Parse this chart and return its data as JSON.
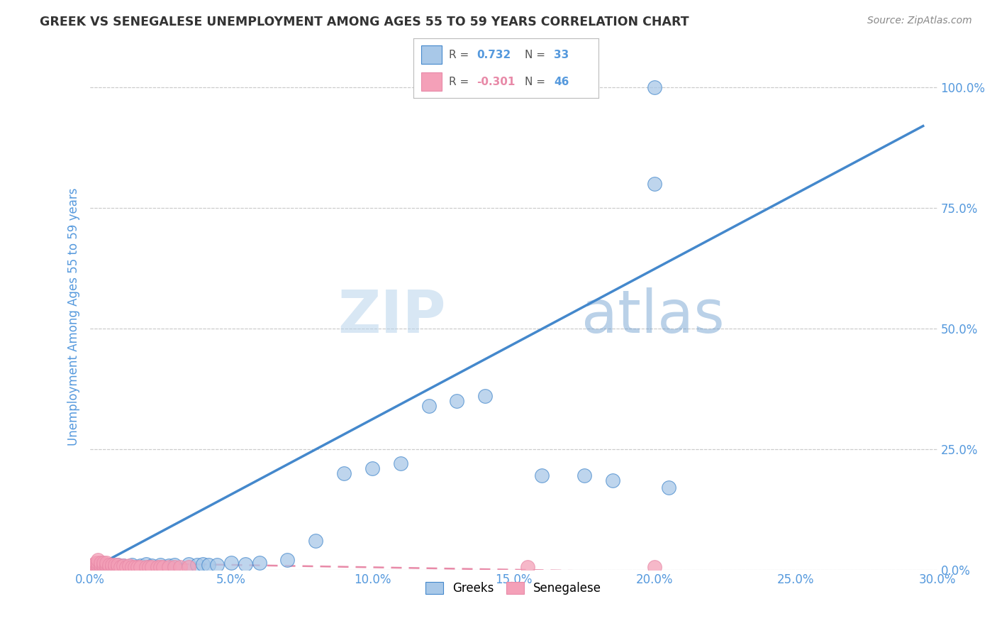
{
  "title": "GREEK VS SENEGALESE UNEMPLOYMENT AMONG AGES 55 TO 59 YEARS CORRELATION CHART",
  "source": "Source: ZipAtlas.com",
  "xlim": [
    0,
    0.3
  ],
  "ylim": [
    0,
    1.05
  ],
  "legend_label_blue": "Greeks",
  "legend_label_pink": "Senegalese",
  "R_blue": "0.732",
  "N_blue": "33",
  "R_pink": "-0.301",
  "N_pink": "46",
  "watermark_zip": "ZIP",
  "watermark_atlas": "atlas",
  "blue_color": "#A8C8E8",
  "pink_color": "#F4A0B8",
  "blue_line_color": "#4488CC",
  "pink_line_color": "#E88AA8",
  "title_color": "#333333",
  "source_color": "#888888",
  "axis_color": "#5599DD",
  "grid_color": "#CCCCCC",
  "blue_scatter_x": [
    0.005,
    0.008,
    0.01,
    0.012,
    0.015,
    0.018,
    0.02,
    0.022,
    0.025,
    0.028,
    0.03,
    0.035,
    0.038,
    0.04,
    0.042,
    0.045,
    0.05,
    0.055,
    0.06,
    0.07,
    0.08,
    0.09,
    0.1,
    0.11,
    0.12,
    0.13,
    0.14,
    0.16,
    0.175,
    0.185,
    0.2,
    0.205,
    0.2
  ],
  "blue_scatter_y": [
    0.01,
    0.008,
    0.01,
    0.008,
    0.01,
    0.008,
    0.012,
    0.008,
    0.01,
    0.008,
    0.01,
    0.012,
    0.01,
    0.012,
    0.01,
    0.01,
    0.015,
    0.012,
    0.015,
    0.02,
    0.06,
    0.2,
    0.21,
    0.22,
    0.34,
    0.35,
    0.36,
    0.195,
    0.195,
    0.185,
    0.8,
    0.17,
    1.0
  ],
  "pink_scatter_x": [
    0.001,
    0.001,
    0.002,
    0.002,
    0.002,
    0.003,
    0.003,
    0.003,
    0.003,
    0.004,
    0.004,
    0.004,
    0.005,
    0.005,
    0.005,
    0.006,
    0.006,
    0.006,
    0.007,
    0.007,
    0.008,
    0.008,
    0.009,
    0.009,
    0.01,
    0.01,
    0.011,
    0.012,
    0.013,
    0.014,
    0.015,
    0.016,
    0.017,
    0.018,
    0.02,
    0.021,
    0.022,
    0.024,
    0.025,
    0.026,
    0.028,
    0.03,
    0.032,
    0.035,
    0.155,
    0.2
  ],
  "pink_scatter_y": [
    0.005,
    0.01,
    0.005,
    0.01,
    0.015,
    0.005,
    0.01,
    0.015,
    0.02,
    0.005,
    0.01,
    0.015,
    0.005,
    0.01,
    0.015,
    0.005,
    0.01,
    0.015,
    0.005,
    0.01,
    0.005,
    0.01,
    0.005,
    0.01,
    0.005,
    0.01,
    0.005,
    0.008,
    0.005,
    0.008,
    0.005,
    0.005,
    0.005,
    0.005,
    0.005,
    0.005,
    0.005,
    0.005,
    0.005,
    0.005,
    0.005,
    0.005,
    0.005,
    0.005,
    0.005,
    0.005
  ],
  "blue_line_x": [
    0.0,
    0.295
  ],
  "blue_line_y": [
    0.0,
    0.92
  ],
  "pink_line_x": [
    0.0,
    0.2
  ],
  "pink_line_y": [
    0.015,
    -0.005
  ]
}
